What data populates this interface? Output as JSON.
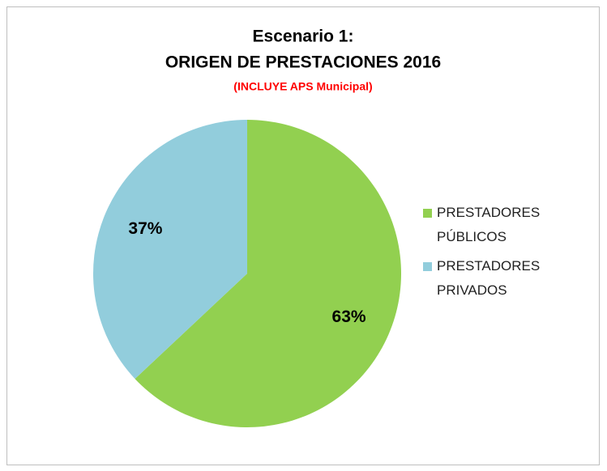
{
  "chart_data": {
    "type": "pie",
    "title": [
      "Escenario 1:",
      "ORIGEN DE PRESTACIONES 2016"
    ],
    "subtitle": "(INCLUYE APS Municipal)",
    "categories": [
      "PRESTADORES PÚBLICOS",
      "PRESTADORES PRIVADOS"
    ],
    "values": [
      63,
      37
    ],
    "value_labels": [
      "63%",
      "37%"
    ],
    "colors": [
      "#92d050",
      "#92cddc"
    ],
    "subtitle_color": "#ff0000",
    "legend": "right"
  }
}
